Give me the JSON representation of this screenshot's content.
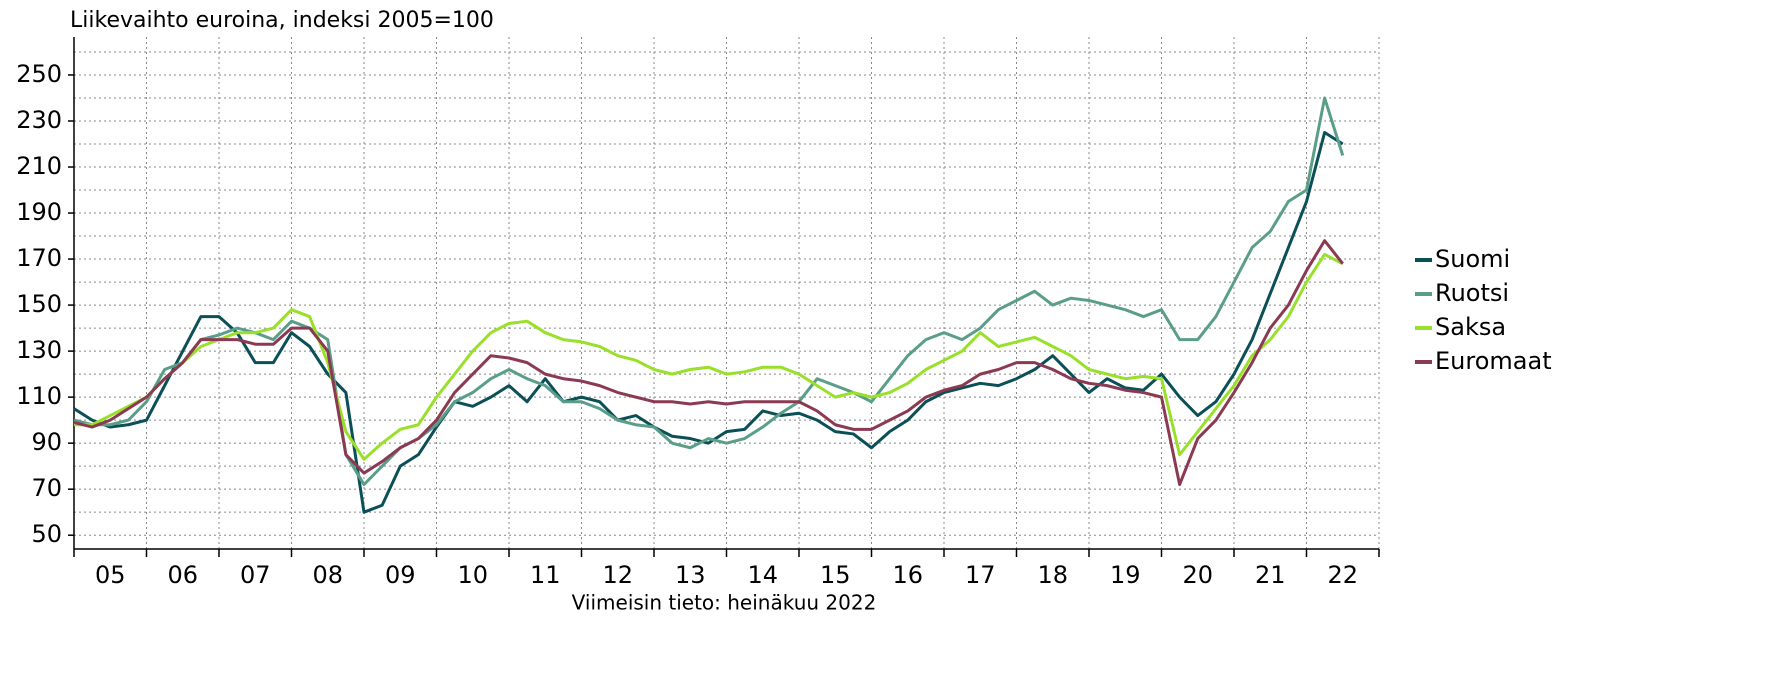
{
  "chart_data": {
    "type": "line",
    "title": "Liikevaihto euroina, indeksi 2005=100",
    "note": "Viimeisin tieto: heinäkuu 2022",
    "x": [
      2005,
      2005.25,
      2005.5,
      2005.75,
      2006,
      2006.25,
      2006.5,
      2006.75,
      2007,
      2007.25,
      2007.5,
      2007.75,
      2008,
      2008.25,
      2008.5,
      2008.75,
      2009,
      2009.25,
      2009.5,
      2009.75,
      2010,
      2010.25,
      2010.5,
      2010.75,
      2011,
      2011.25,
      2011.5,
      2011.75,
      2012,
      2012.25,
      2012.5,
      2012.75,
      2013,
      2013.25,
      2013.5,
      2013.75,
      2014,
      2014.25,
      2014.5,
      2014.75,
      2015,
      2015.25,
      2015.5,
      2015.75,
      2016,
      2016.25,
      2016.5,
      2016.75,
      2017,
      2017.25,
      2017.5,
      2017.75,
      2018,
      2018.25,
      2018.5,
      2018.75,
      2019,
      2019.25,
      2019.5,
      2019.75,
      2020,
      2020.25,
      2020.5,
      2020.75,
      2021,
      2021.25,
      2021.5,
      2021.75,
      2022,
      2022.25,
      2022.5
    ],
    "series": [
      {
        "name": "Suomi",
        "color": "#0b4f57",
        "values": [
          105,
          100,
          97,
          98,
          100,
          115,
          130,
          145,
          145,
          138,
          125,
          125,
          138,
          132,
          120,
          112,
          60,
          63,
          80,
          85,
          97,
          108,
          106,
          110,
          115,
          108,
          118,
          108,
          110,
          108,
          100,
          102,
          97,
          93,
          92,
          90,
          95,
          96,
          104,
          102,
          103,
          100,
          95,
          94,
          88,
          95,
          100,
          108,
          112,
          114,
          116,
          115,
          118,
          122,
          128,
          120,
          112,
          118,
          114,
          113,
          120,
          110,
          102,
          108,
          120,
          135,
          155,
          175,
          195,
          225,
          220
        ]
      },
      {
        "name": "Ruotsi",
        "color": "#5a9e8a",
        "values": [
          100,
          98,
          98,
          100,
          108,
          122,
          125,
          135,
          137,
          140,
          138,
          135,
          143,
          140,
          135,
          85,
          72,
          80,
          88,
          92,
          98,
          108,
          112,
          118,
          122,
          118,
          115,
          108,
          108,
          105,
          100,
          98,
          97,
          90,
          88,
          92,
          90,
          92,
          97,
          103,
          108,
          118,
          115,
          112,
          108,
          118,
          128,
          135,
          138,
          135,
          140,
          148,
          152,
          156,
          150,
          153,
          152,
          150,
          148,
          145,
          148,
          135,
          135,
          145,
          160,
          175,
          182,
          195,
          200,
          240,
          215
        ]
      },
      {
        "name": "Saksa",
        "color": "#99e02a",
        "values": [
          98,
          98,
          102,
          106,
          110,
          118,
          125,
          132,
          135,
          138,
          138,
          140,
          148,
          145,
          125,
          95,
          83,
          90,
          96,
          98,
          110,
          120,
          130,
          138,
          142,
          143,
          138,
          135,
          134,
          132,
          128,
          126,
          122,
          120,
          122,
          123,
          120,
          121,
          123,
          123,
          120,
          115,
          110,
          112,
          110,
          112,
          116,
          122,
          126,
          130,
          138,
          132,
          134,
          136,
          132,
          128,
          122,
          120,
          118,
          119,
          118,
          85,
          95,
          105,
          115,
          128,
          135,
          145,
          160,
          172,
          168
        ]
      },
      {
        "name": "Euromaat",
        "color": "#8b3a52",
        "values": [
          99,
          97,
          100,
          105,
          110,
          118,
          125,
          135,
          135,
          135,
          133,
          133,
          140,
          140,
          130,
          85,
          77,
          82,
          88,
          92,
          100,
          112,
          120,
          128,
          127,
          125,
          120,
          118,
          117,
          115,
          112,
          110,
          108,
          108,
          107,
          108,
          107,
          108,
          108,
          108,
          108,
          104,
          98,
          96,
          96,
          100,
          104,
          110,
          113,
          115,
          120,
          122,
          125,
          125,
          122,
          118,
          116,
          115,
          113,
          112,
          110,
          72,
          92,
          100,
          112,
          125,
          140,
          150,
          165,
          178,
          168
        ]
      }
    ],
    "xlim": [
      2005,
      2023
    ],
    "xticks": [
      {
        "value": 2005.5,
        "label": "05"
      },
      {
        "value": 2006.5,
        "label": "06"
      },
      {
        "value": 2007.5,
        "label": "07"
      },
      {
        "value": 2008.5,
        "label": "08"
      },
      {
        "value": 2009.5,
        "label": "09"
      },
      {
        "value": 2010.5,
        "label": "10"
      },
      {
        "value": 2011.5,
        "label": "11"
      },
      {
        "value": 2012.5,
        "label": "12"
      },
      {
        "value": 2013.5,
        "label": "13"
      },
      {
        "value": 2014.5,
        "label": "14"
      },
      {
        "value": 2015.5,
        "label": "15"
      },
      {
        "value": 2016.5,
        "label": "16"
      },
      {
        "value": 2017.5,
        "label": "17"
      },
      {
        "value": 2018.5,
        "label": "18"
      },
      {
        "value": 2019.5,
        "label": "19"
      },
      {
        "value": 2020.5,
        "label": "20"
      },
      {
        "value": 2021.5,
        "label": "21"
      },
      {
        "value": 2022.5,
        "label": "22"
      }
    ],
    "ylim": [
      44,
      266.5
    ],
    "yticks": [
      50,
      70,
      90,
      110,
      130,
      150,
      170,
      190,
      210,
      230,
      250
    ],
    "grid": true
  }
}
